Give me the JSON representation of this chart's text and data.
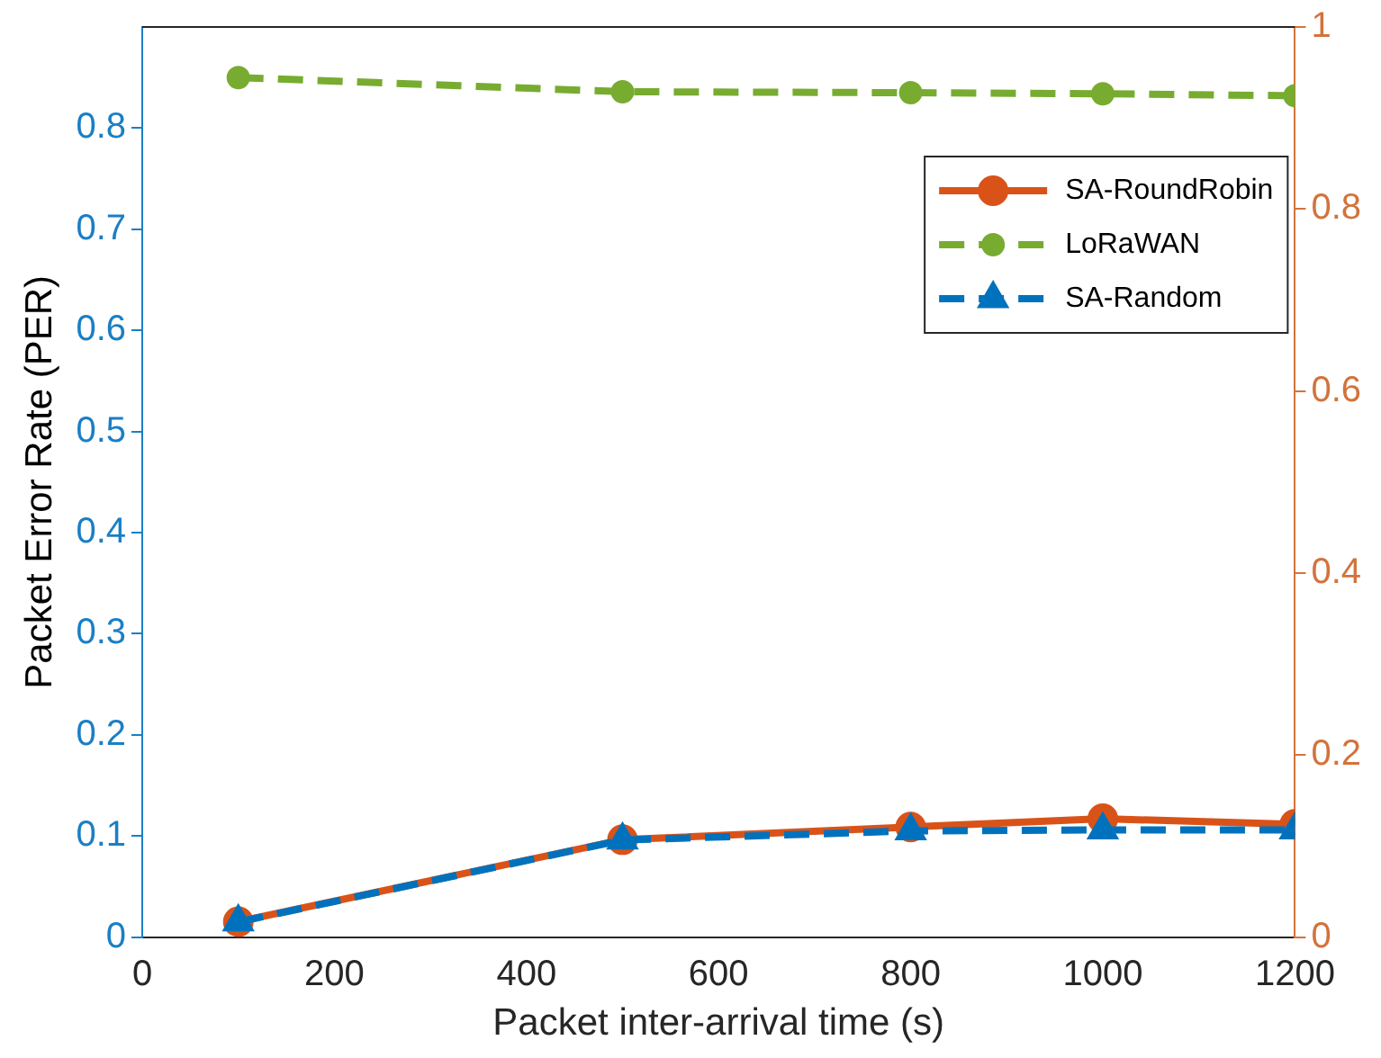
{
  "chart_data": {
    "type": "line",
    "xlabel": "Packet inter-arrival time (s)",
    "ylabel": "Packet Error Rate (PER)",
    "x": [
      100,
      500,
      800,
      1000,
      1200
    ],
    "xlim": [
      0,
      1200
    ],
    "xticks": [
      0,
      200,
      400,
      600,
      800,
      1000,
      1200
    ],
    "ylim": [
      0,
      0.9
    ],
    "yticks": [
      0,
      0.1,
      0.2,
      0.3,
      0.4,
      0.5,
      0.6,
      0.7,
      0.8
    ],
    "y2lim": [
      0,
      1
    ],
    "y2ticks": [
      0,
      0.2,
      0.4,
      0.6,
      0.8,
      1
    ],
    "grid": false,
    "legend": "top right",
    "series": [
      {
        "name": "SA-RoundRobin",
        "color": "#d95319",
        "axis": "y2",
        "marker": "circle",
        "line_style": "solid",
        "values": [
          0.017,
          0.107,
          0.121,
          0.13,
          0.124
        ]
      },
      {
        "name": "LoRaWAN",
        "color": "#77ac30",
        "marker": "circle",
        "line_style": "dashed",
        "values": [
          0.85,
          0.836,
          0.835,
          0.834,
          0.832
        ]
      },
      {
        "name": "SA-Random",
        "color": "#0072bd",
        "marker": "triangle",
        "line_style": "dashed",
        "values": [
          0.015,
          0.096,
          0.105,
          0.106,
          0.106
        ]
      }
    ]
  }
}
